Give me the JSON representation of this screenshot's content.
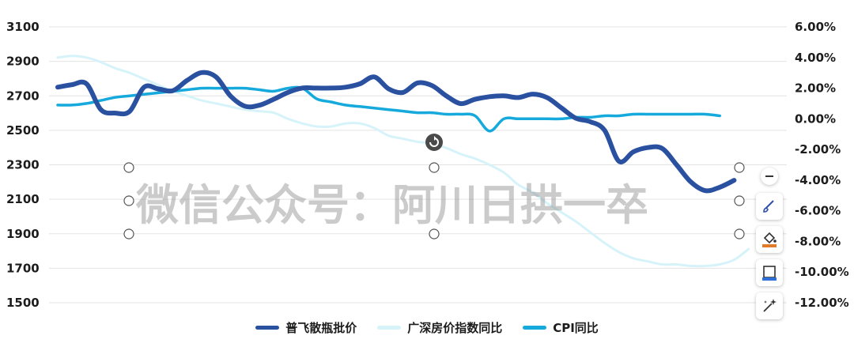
{
  "chart_data": {
    "type": "line",
    "title": "",
    "left_axis": {
      "ticks": [
        "3100",
        "2900",
        "2700",
        "2500",
        "2300",
        "2100",
        "1900",
        "1700",
        "1500"
      ],
      "ylim": [
        1500,
        3100
      ]
    },
    "right_axis": {
      "ticks": [
        "6.00%",
        "4.00%",
        "2.00%",
        "0.00%",
        "-2.00%",
        "-4.00%",
        "-6.00%",
        "-8.00%",
        "-10.00%",
        "-12.00%"
      ],
      "ylim": [
        -12,
        6
      ]
    },
    "x_count": 51,
    "legend_position": "bottom-center",
    "series": [
      {
        "name": "普飞散瓶批价",
        "axis": "left",
        "color": "#2a50a0",
        "values": [
          2750,
          2765,
          2770,
          2620,
          2600,
          2610,
          2750,
          2740,
          2730,
          2790,
          2835,
          2810,
          2700,
          2640,
          2645,
          2680,
          2720,
          2745,
          2745,
          2745,
          2750,
          2770,
          2810,
          2740,
          2720,
          2775,
          2760,
          2700,
          2655,
          2680,
          2695,
          2700,
          2690,
          2710,
          2690,
          2630,
          2570,
          2550,
          2500,
          2320,
          2375,
          2400,
          2395,
          2300,
          2200,
          2150,
          2170,
          2210
        ]
      },
      {
        "name": "广深房价指数同比",
        "axis": "right",
        "color": "#d6f3fa",
        "values": [
          4.0,
          4.1,
          4.0,
          3.7,
          3.3,
          3.0,
          2.6,
          2.2,
          1.8,
          1.5,
          1.2,
          1.0,
          0.8,
          0.6,
          0.5,
          0.4,
          0.0,
          -0.3,
          -0.5,
          -0.5,
          -0.3,
          -0.3,
          -0.6,
          -1.1,
          -1.3,
          -1.5,
          -1.6,
          -1.9,
          -2.3,
          -2.6,
          -3.0,
          -3.5,
          -4.3,
          -4.8,
          -5.5,
          -6.1,
          -6.7,
          -7.4,
          -8.1,
          -8.7,
          -9.1,
          -9.3,
          -9.5,
          -9.5,
          -9.6,
          -9.6,
          -9.5,
          -9.2,
          -8.5
        ]
      },
      {
        "name": "CPI同比",
        "axis": "right",
        "color": "#16a9dc",
        "values": [
          0.9,
          0.9,
          1.0,
          1.2,
          1.4,
          1.5,
          1.6,
          1.7,
          1.8,
          1.9,
          2.0,
          2.0,
          2.0,
          2.0,
          1.9,
          1.8,
          2.0,
          2.0,
          1.3,
          1.1,
          0.9,
          0.8,
          0.7,
          0.6,
          0.5,
          0.4,
          0.4,
          0.3,
          0.3,
          0.2,
          -0.8,
          0.0,
          0.0,
          0.0,
          0.0,
          0.0,
          0.1,
          0.1,
          0.2,
          0.2,
          0.3,
          0.3,
          0.3,
          0.3,
          0.3,
          0.3,
          0.2
        ]
      }
    ]
  },
  "watermark": "微信公众号：阿川日拱一卒",
  "toolbar": {
    "collapse_icon": "minus-icon",
    "brush_icon": "brush-icon",
    "fill_icon": "paint-bucket-icon",
    "frame_icon": "frame-icon",
    "effects_icon": "magic-wand-icon"
  }
}
